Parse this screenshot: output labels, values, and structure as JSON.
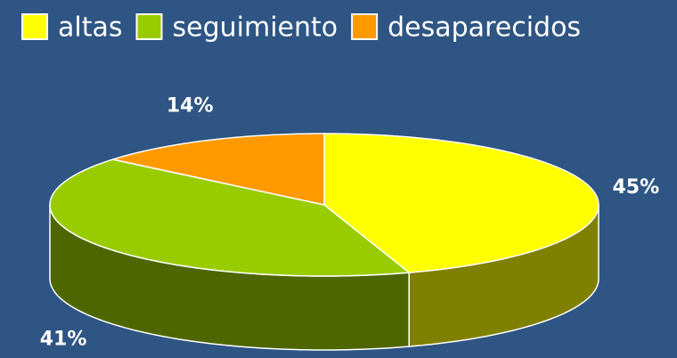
{
  "chart_data": {
    "type": "pie3d",
    "categories": [
      "altas",
      "seguimiento",
      "desaparecidos"
    ],
    "values": [
      45,
      41,
      14
    ],
    "value_labels": [
      "45%",
      "41%",
      "14%"
    ],
    "colors": [
      "#ffff00",
      "#99cc00",
      "#ff9900"
    ],
    "legend": "top"
  }
}
